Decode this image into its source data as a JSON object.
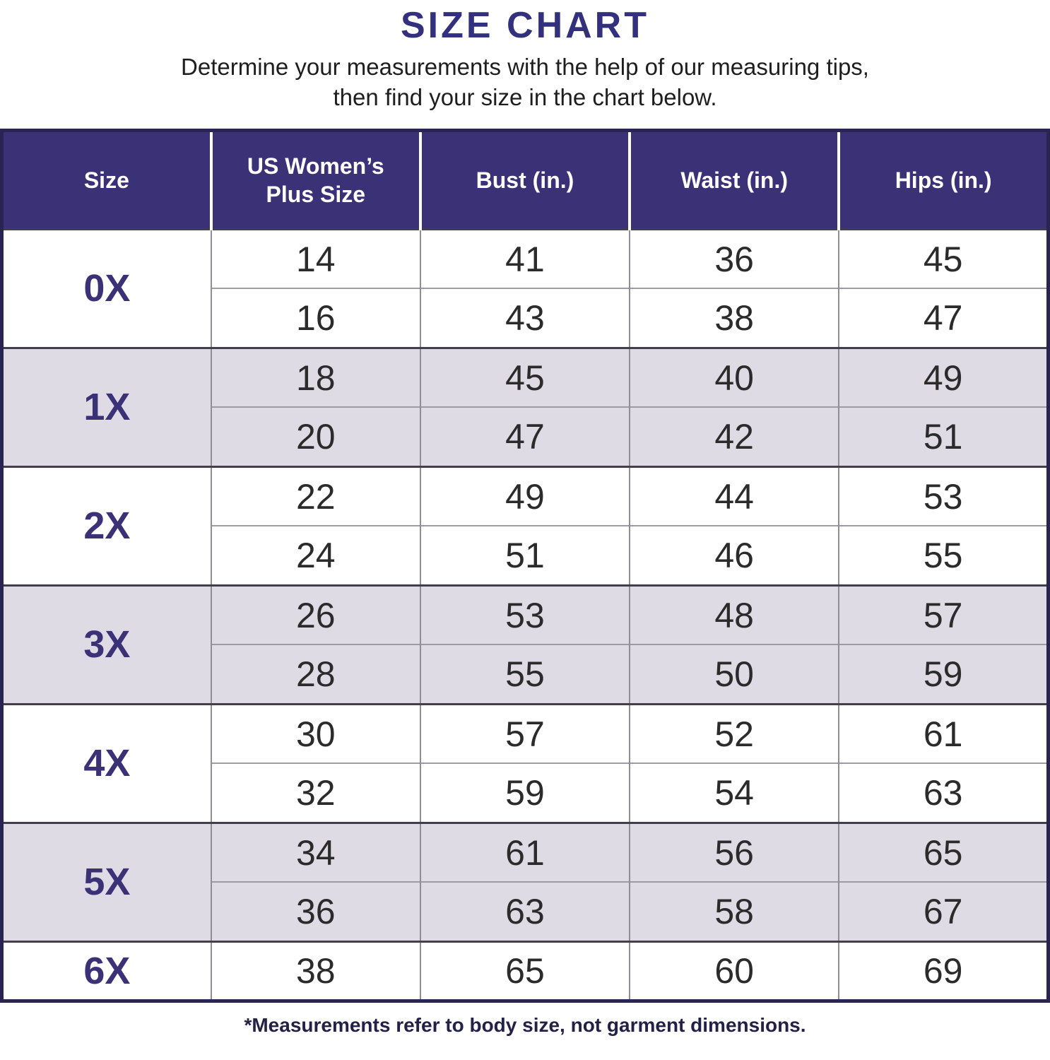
{
  "page": {
    "title": "SIZE CHART",
    "subtitle_line1": "Determine your measurements with the help of our measuring tips,",
    "subtitle_line2": "then find your size in the chart below.",
    "footnote": "*Measurements refer to body size, not garment dimensions."
  },
  "colors": {
    "header_bg": "#3B3176",
    "header_text": "#FFFFFF",
    "title_accent": "#33307E",
    "shaded_row_bg": "#DFDBE5",
    "plain_row_bg": "#FFFFFF",
    "body_text": "#2B2B2B",
    "footnote_text": "#242148",
    "outer_border": "#2A2453",
    "column_divider": "#8F8D95",
    "section_divider": "#413F4B"
  },
  "chart_data": {
    "type": "table",
    "title": "SIZE CHART",
    "columns": [
      "Size",
      "US Women’s Plus Size",
      "Bust (in.)",
      "Waist (in.)",
      "Hips (in.)"
    ],
    "groups": [
      {
        "size": "0X",
        "shaded": false,
        "rows": [
          [
            14,
            41,
            36,
            45
          ],
          [
            16,
            43,
            38,
            47
          ]
        ]
      },
      {
        "size": "1X",
        "shaded": true,
        "rows": [
          [
            18,
            45,
            40,
            49
          ],
          [
            20,
            47,
            42,
            51
          ]
        ]
      },
      {
        "size": "2X",
        "shaded": false,
        "rows": [
          [
            22,
            49,
            44,
            53
          ],
          [
            24,
            51,
            46,
            55
          ]
        ]
      },
      {
        "size": "3X",
        "shaded": true,
        "rows": [
          [
            26,
            53,
            48,
            57
          ],
          [
            28,
            55,
            50,
            59
          ]
        ]
      },
      {
        "size": "4X",
        "shaded": false,
        "rows": [
          [
            30,
            57,
            52,
            61
          ],
          [
            32,
            59,
            54,
            63
          ]
        ]
      },
      {
        "size": "5X",
        "shaded": true,
        "rows": [
          [
            34,
            61,
            56,
            65
          ],
          [
            36,
            63,
            58,
            67
          ]
        ]
      },
      {
        "size": "6X",
        "shaded": false,
        "rows": [
          [
            38,
            65,
            60,
            69
          ]
        ]
      }
    ],
    "layout": {
      "grouped_rows_per_size": 2,
      "alternating_group_shading": true,
      "legend": "none",
      "grid": "on"
    }
  }
}
